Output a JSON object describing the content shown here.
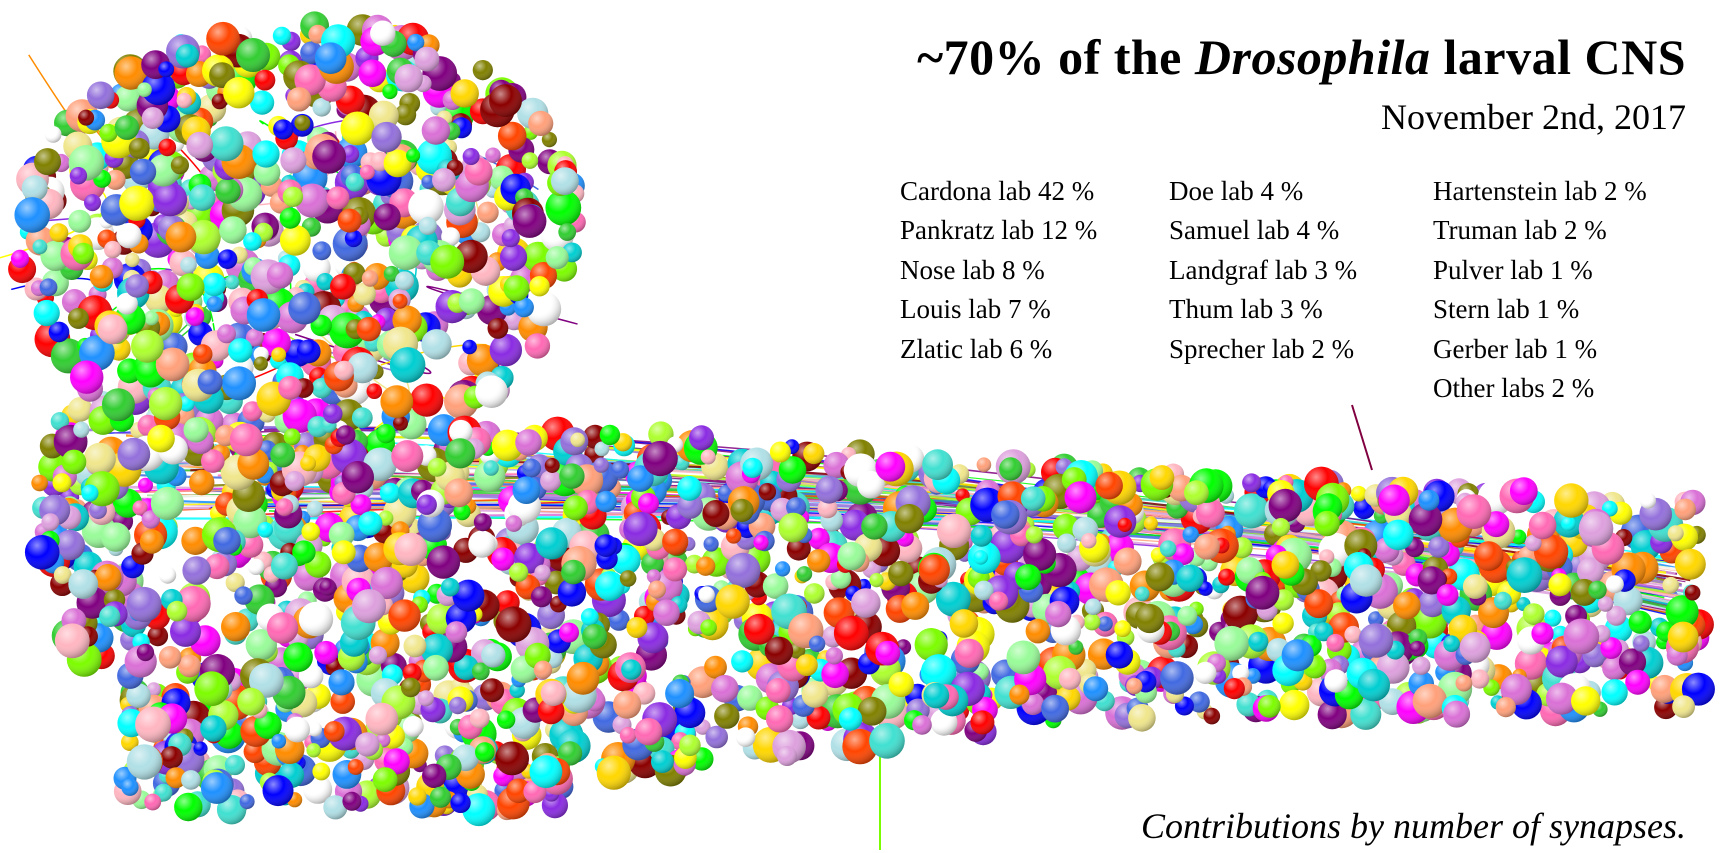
{
  "title": {
    "prefix": "~70% of the ",
    "species": "Drosophila",
    "suffix": " larval CNS"
  },
  "date": "November 2nd, 2017",
  "contributions": [
    [
      "Cardona lab 42 %",
      "Pankratz lab 12 %",
      "Nose lab 8 %",
      "Louis lab 7 %",
      "Zlatic lab 6 %"
    ],
    [
      "Doe lab 4 %",
      "Samuel lab 4 %",
      "Landgraf lab 3 %",
      "Thum lab 3 %",
      "Sprecher lab 2 %"
    ],
    [
      "Hartenstein lab 2 %",
      "Truman lab 2 %",
      "Pulver lab 1 %",
      "Stern lab 1 %",
      "Gerber lab 1 %",
      "Other labs 2 %"
    ]
  ],
  "footnote": "Contributions by number of synapses.",
  "palette": [
    "#ff00ff",
    "#00ff00",
    "#ffff00",
    "#00ffff",
    "#ff0000",
    "#0000ff",
    "#ff8c00",
    "#8a2be2",
    "#7cfc00",
    "#ff69b4",
    "#40e0d0",
    "#ffd700",
    "#adff2f",
    "#9370db",
    "#ff4500",
    "#00ced1",
    "#f0e68c",
    "#da70d6",
    "#32cd32",
    "#1e90ff",
    "#ffb6c1",
    "#b0e0e6",
    "#800080",
    "#808000",
    "#ffa07a",
    "#98fb98",
    "#dda0dd",
    "#ffffff",
    "#4169e1",
    "#8b0000"
  ]
}
